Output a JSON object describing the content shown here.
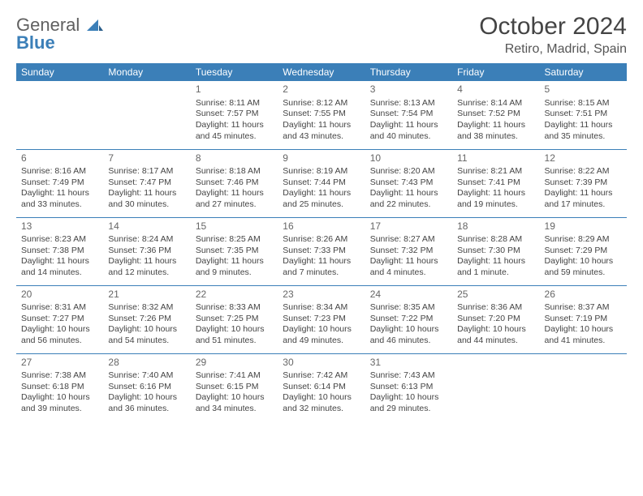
{
  "logo": {
    "textA": "General",
    "textB": "Blue"
  },
  "title": "October 2024",
  "subtitle": "Retiro, Madrid, Spain",
  "colors": {
    "header_bg": "#3b7fb8",
    "header_text": "#ffffff",
    "row_border": "#3b7fb8",
    "body_text": "#444444",
    "daynum_text": "#666666",
    "logo_grey": "#606060",
    "logo_blue": "#3b7fb8",
    "page_bg": "#ffffff"
  },
  "day_headers": [
    "Sunday",
    "Monday",
    "Tuesday",
    "Wednesday",
    "Thursday",
    "Friday",
    "Saturday"
  ],
  "weeks": [
    [
      null,
      null,
      {
        "n": "1",
        "sr": "Sunrise: 8:11 AM",
        "ss": "Sunset: 7:57 PM",
        "d1": "Daylight: 11 hours",
        "d2": "and 45 minutes."
      },
      {
        "n": "2",
        "sr": "Sunrise: 8:12 AM",
        "ss": "Sunset: 7:55 PM",
        "d1": "Daylight: 11 hours",
        "d2": "and 43 minutes."
      },
      {
        "n": "3",
        "sr": "Sunrise: 8:13 AM",
        "ss": "Sunset: 7:54 PM",
        "d1": "Daylight: 11 hours",
        "d2": "and 40 minutes."
      },
      {
        "n": "4",
        "sr": "Sunrise: 8:14 AM",
        "ss": "Sunset: 7:52 PM",
        "d1": "Daylight: 11 hours",
        "d2": "and 38 minutes."
      },
      {
        "n": "5",
        "sr": "Sunrise: 8:15 AM",
        "ss": "Sunset: 7:51 PM",
        "d1": "Daylight: 11 hours",
        "d2": "and 35 minutes."
      }
    ],
    [
      {
        "n": "6",
        "sr": "Sunrise: 8:16 AM",
        "ss": "Sunset: 7:49 PM",
        "d1": "Daylight: 11 hours",
        "d2": "and 33 minutes."
      },
      {
        "n": "7",
        "sr": "Sunrise: 8:17 AM",
        "ss": "Sunset: 7:47 PM",
        "d1": "Daylight: 11 hours",
        "d2": "and 30 minutes."
      },
      {
        "n": "8",
        "sr": "Sunrise: 8:18 AM",
        "ss": "Sunset: 7:46 PM",
        "d1": "Daylight: 11 hours",
        "d2": "and 27 minutes."
      },
      {
        "n": "9",
        "sr": "Sunrise: 8:19 AM",
        "ss": "Sunset: 7:44 PM",
        "d1": "Daylight: 11 hours",
        "d2": "and 25 minutes."
      },
      {
        "n": "10",
        "sr": "Sunrise: 8:20 AM",
        "ss": "Sunset: 7:43 PM",
        "d1": "Daylight: 11 hours",
        "d2": "and 22 minutes."
      },
      {
        "n": "11",
        "sr": "Sunrise: 8:21 AM",
        "ss": "Sunset: 7:41 PM",
        "d1": "Daylight: 11 hours",
        "d2": "and 19 minutes."
      },
      {
        "n": "12",
        "sr": "Sunrise: 8:22 AM",
        "ss": "Sunset: 7:39 PM",
        "d1": "Daylight: 11 hours",
        "d2": "and 17 minutes."
      }
    ],
    [
      {
        "n": "13",
        "sr": "Sunrise: 8:23 AM",
        "ss": "Sunset: 7:38 PM",
        "d1": "Daylight: 11 hours",
        "d2": "and 14 minutes."
      },
      {
        "n": "14",
        "sr": "Sunrise: 8:24 AM",
        "ss": "Sunset: 7:36 PM",
        "d1": "Daylight: 11 hours",
        "d2": "and 12 minutes."
      },
      {
        "n": "15",
        "sr": "Sunrise: 8:25 AM",
        "ss": "Sunset: 7:35 PM",
        "d1": "Daylight: 11 hours",
        "d2": "and 9 minutes."
      },
      {
        "n": "16",
        "sr": "Sunrise: 8:26 AM",
        "ss": "Sunset: 7:33 PM",
        "d1": "Daylight: 11 hours",
        "d2": "and 7 minutes."
      },
      {
        "n": "17",
        "sr": "Sunrise: 8:27 AM",
        "ss": "Sunset: 7:32 PM",
        "d1": "Daylight: 11 hours",
        "d2": "and 4 minutes."
      },
      {
        "n": "18",
        "sr": "Sunrise: 8:28 AM",
        "ss": "Sunset: 7:30 PM",
        "d1": "Daylight: 11 hours",
        "d2": "and 1 minute."
      },
      {
        "n": "19",
        "sr": "Sunrise: 8:29 AM",
        "ss": "Sunset: 7:29 PM",
        "d1": "Daylight: 10 hours",
        "d2": "and 59 minutes."
      }
    ],
    [
      {
        "n": "20",
        "sr": "Sunrise: 8:31 AM",
        "ss": "Sunset: 7:27 PM",
        "d1": "Daylight: 10 hours",
        "d2": "and 56 minutes."
      },
      {
        "n": "21",
        "sr": "Sunrise: 8:32 AM",
        "ss": "Sunset: 7:26 PM",
        "d1": "Daylight: 10 hours",
        "d2": "and 54 minutes."
      },
      {
        "n": "22",
        "sr": "Sunrise: 8:33 AM",
        "ss": "Sunset: 7:25 PM",
        "d1": "Daylight: 10 hours",
        "d2": "and 51 minutes."
      },
      {
        "n": "23",
        "sr": "Sunrise: 8:34 AM",
        "ss": "Sunset: 7:23 PM",
        "d1": "Daylight: 10 hours",
        "d2": "and 49 minutes."
      },
      {
        "n": "24",
        "sr": "Sunrise: 8:35 AM",
        "ss": "Sunset: 7:22 PM",
        "d1": "Daylight: 10 hours",
        "d2": "and 46 minutes."
      },
      {
        "n": "25",
        "sr": "Sunrise: 8:36 AM",
        "ss": "Sunset: 7:20 PM",
        "d1": "Daylight: 10 hours",
        "d2": "and 44 minutes."
      },
      {
        "n": "26",
        "sr": "Sunrise: 8:37 AM",
        "ss": "Sunset: 7:19 PM",
        "d1": "Daylight: 10 hours",
        "d2": "and 41 minutes."
      }
    ],
    [
      {
        "n": "27",
        "sr": "Sunrise: 7:38 AM",
        "ss": "Sunset: 6:18 PM",
        "d1": "Daylight: 10 hours",
        "d2": "and 39 minutes."
      },
      {
        "n": "28",
        "sr": "Sunrise: 7:40 AM",
        "ss": "Sunset: 6:16 PM",
        "d1": "Daylight: 10 hours",
        "d2": "and 36 minutes."
      },
      {
        "n": "29",
        "sr": "Sunrise: 7:41 AM",
        "ss": "Sunset: 6:15 PM",
        "d1": "Daylight: 10 hours",
        "d2": "and 34 minutes."
      },
      {
        "n": "30",
        "sr": "Sunrise: 7:42 AM",
        "ss": "Sunset: 6:14 PM",
        "d1": "Daylight: 10 hours",
        "d2": "and 32 minutes."
      },
      {
        "n": "31",
        "sr": "Sunrise: 7:43 AM",
        "ss": "Sunset: 6:13 PM",
        "d1": "Daylight: 10 hours",
        "d2": "and 29 minutes."
      },
      null,
      null
    ]
  ]
}
